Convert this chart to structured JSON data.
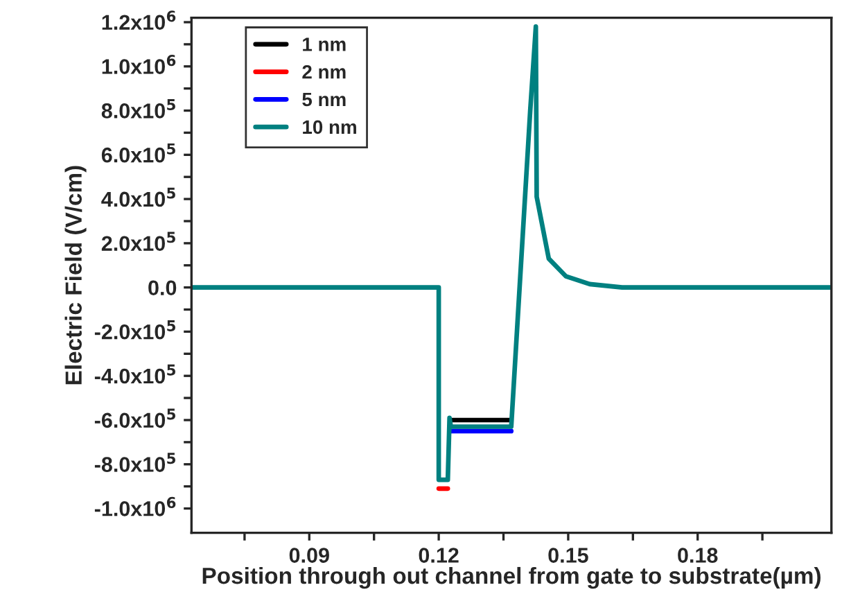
{
  "chart_data": {
    "type": "line",
    "xlabel": "Position through out channel from gate to substrate(µm)",
    "ylabel": "Electric Field (V/cm)",
    "xlim": [
      0.0627,
      0.211
    ],
    "ylim": [
      -1110000,
      1220000
    ],
    "xticks": [
      {
        "value": 0.075,
        "label": null
      },
      0.09,
      {
        "value": 0.105,
        "label": null
      },
      0.12,
      {
        "value": 0.135,
        "label": null
      },
      0.15,
      {
        "value": 0.165,
        "label": null
      },
      0.18,
      {
        "value": 0.195,
        "label": null
      }
    ],
    "yticks": [
      {
        "value": -1000000,
        "label": "-1.0x10$^{6}$"
      },
      {
        "value": -900000,
        "label": null
      },
      {
        "value": -800000,
        "label": "-8.0x10$^{5}$"
      },
      {
        "value": -700000,
        "label": null
      },
      {
        "value": -600000,
        "label": "-6.0x10$^{5}$"
      },
      {
        "value": -500000,
        "label": null
      },
      {
        "value": -400000,
        "label": "-4.0x10$^{5}$"
      },
      {
        "value": -300000,
        "label": null
      },
      {
        "value": -200000,
        "label": "-2.0x10$^{5}$"
      },
      {
        "value": -100000,
        "label": null
      },
      {
        "value": 0,
        "label": "0.0"
      },
      {
        "value": 100000,
        "label": null
      },
      {
        "value": 200000,
        "label": "2.0x10$^{5}$"
      },
      {
        "value": 300000,
        "label": null
      },
      {
        "value": 400000,
        "label": "4.0x10$^{5}$"
      },
      {
        "value": 500000,
        "label": null
      },
      {
        "value": 600000,
        "label": "6.0x10$^{5}$"
      },
      {
        "value": 700000,
        "label": null
      },
      {
        "value": 800000,
        "label": "8.0x10$^{5}$"
      },
      {
        "value": 900000,
        "label": null
      },
      {
        "value": 1000000,
        "label": "1.0x10$^{6}$"
      },
      {
        "value": 1100000,
        "label": null
      },
      {
        "value": 1200000,
        "label": "1.2x10$^{6}$"
      }
    ],
    "grid": false,
    "legend": "top left",
    "marker": "none",
    "line_style": "solid",
    "x": [
      0.0627,
      0.12,
      0.12,
      0.1221,
      0.1225,
      0.1228,
      0.1368,
      0.1412,
      0.1425,
      0.1427,
      0.1455,
      0.1495,
      0.155,
      0.1625,
      0.211
    ],
    "series": [
      {
        "name": "1 nm",
        "color": "#000000",
        "values": [
          null,
          null,
          null,
          null,
          null,
          -600000,
          -600000,
          null,
          null,
          null,
          null,
          null,
          null,
          null,
          null
        ]
      },
      {
        "name": "2 nm",
        "color": "#ff0000",
        "values": [
          null,
          null,
          -910000,
          -910000,
          null,
          null,
          null,
          null,
          null,
          null,
          null,
          null,
          null,
          null,
          null
        ]
      },
      {
        "name": "5 nm",
        "color": "#0000ff",
        "values": [
          null,
          null,
          null,
          null,
          null,
          -650000,
          -650000,
          null,
          null,
          null,
          null,
          null,
          null,
          null,
          null
        ]
      },
      {
        "name": "10 nm",
        "color": "#008080",
        "values": [
          0,
          0,
          -870000,
          -870000,
          -590000,
          -630000,
          -630000,
          800000,
          1180000,
          410000,
          130000,
          50000,
          15000,
          0,
          0
        ]
      }
    ]
  }
}
